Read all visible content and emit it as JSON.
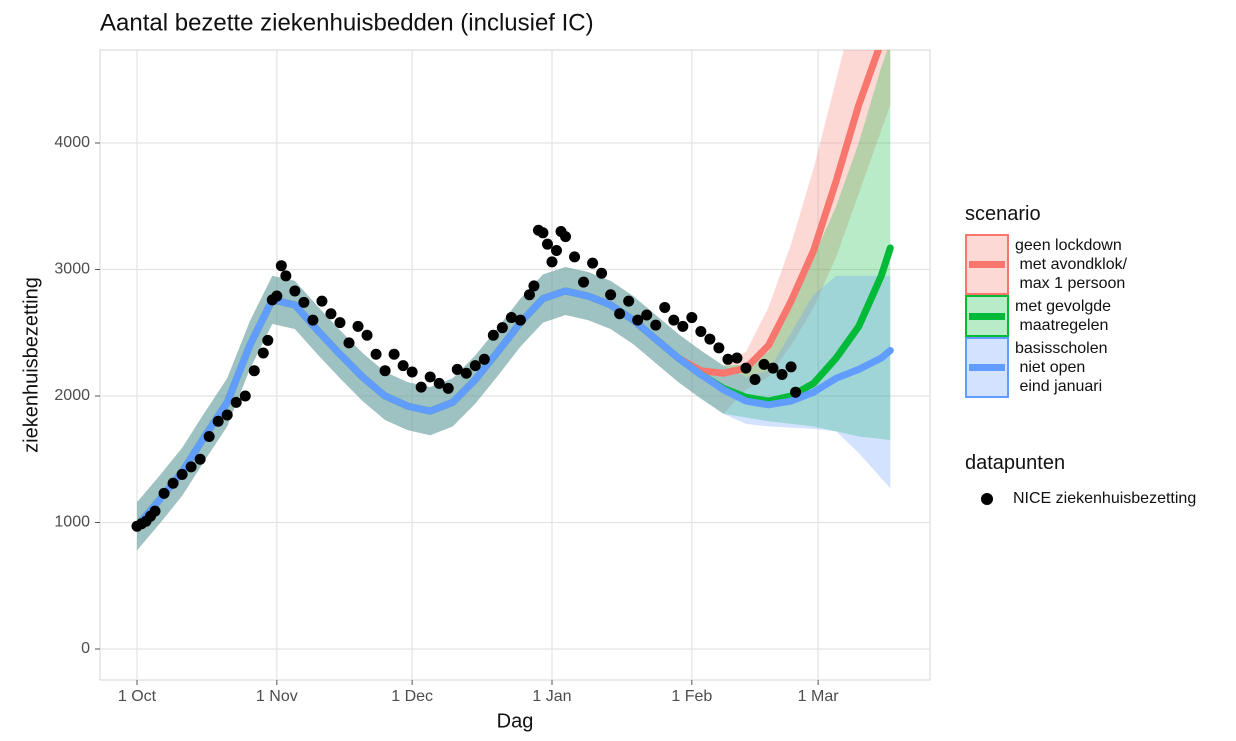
{
  "chart_data": {
    "type": "line",
    "title": "Aantal bezette ziekenhuisbedden (inclusief IC)",
    "x_label": "Dag",
    "y_label": "ziekenhuisbezetting",
    "legend_title": "scenario",
    "points_legend_title": "datapunten",
    "xlim": [
      -8.2,
      175.8
    ],
    "ylim": [
      -245,
      4735
    ],
    "xticks": [
      {
        "value": 0,
        "label": "1 Oct"
      },
      {
        "value": 31,
        "label": "1 Nov"
      },
      {
        "value": 61,
        "label": "1 Dec"
      },
      {
        "value": 92,
        "label": "1 Jan"
      },
      {
        "value": 123,
        "label": "1 Feb"
      },
      {
        "value": 151,
        "label": "1 Mar"
      }
    ],
    "yticks": [
      0,
      1000,
      2000,
      3000,
      4000
    ],
    "grid": true,
    "series": [
      {
        "name": "geen lockdown\n met avondklok/\n max 1 persoon",
        "color": "#f8766d",
        "x": [
          0,
          5,
          10,
          15,
          20,
          25,
          30,
          35,
          40,
          45,
          50,
          55,
          60,
          65,
          70,
          75,
          80,
          85,
          90,
          95,
          100,
          105,
          110,
          115,
          120,
          125,
          130,
          135,
          140,
          145,
          150,
          155,
          160,
          165,
          167
        ],
        "values": [
          970,
          1180,
          1400,
          1680,
          1950,
          2400,
          2760,
          2720,
          2520,
          2330,
          2150,
          2000,
          1920,
          1880,
          1950,
          2130,
          2350,
          2580,
          2770,
          2830,
          2790,
          2720,
          2600,
          2450,
          2300,
          2200,
          2180,
          2220,
          2400,
          2750,
          3150,
          3700,
          4300,
          4800,
          5000
        ],
        "lower": [
          780,
          990,
          1210,
          1490,
          1760,
          2210,
          2570,
          2530,
          2330,
          2140,
          1960,
          1810,
          1730,
          1690,
          1760,
          1940,
          2160,
          2390,
          2580,
          2640,
          2600,
          2530,
          2410,
          2260,
          2110,
          1980,
          1860,
          2050,
          2150,
          2400,
          2700,
          3100,
          3600,
          4100,
          4300
        ],
        "upper": [
          1160,
          1370,
          1590,
          1870,
          2140,
          2590,
          2950,
          2910,
          2710,
          2520,
          2340,
          2190,
          2110,
          2070,
          2140,
          2320,
          2540,
          2770,
          2960,
          3020,
          2980,
          2910,
          2790,
          2640,
          2490,
          2360,
          2240,
          2350,
          2700,
          3200,
          3800,
          4500,
          5200,
          5800,
          6000
        ]
      },
      {
        "name": "met gevolgde\n maatregelen",
        "color": "#00ba38",
        "x": [
          0,
          5,
          10,
          15,
          20,
          25,
          30,
          35,
          40,
          45,
          50,
          55,
          60,
          65,
          70,
          75,
          80,
          85,
          90,
          95,
          100,
          105,
          110,
          115,
          120,
          125,
          130,
          135,
          140,
          145,
          150,
          155,
          160,
          165,
          167
        ],
        "values": [
          970,
          1180,
          1400,
          1680,
          1950,
          2400,
          2760,
          2720,
          2520,
          2330,
          2150,
          2000,
          1920,
          1880,
          1950,
          2130,
          2350,
          2580,
          2770,
          2830,
          2790,
          2720,
          2600,
          2450,
          2300,
          2170,
          2060,
          1990,
          1960,
          2000,
          2100,
          2300,
          2550,
          2950,
          3170
        ],
        "lower": [
          780,
          990,
          1210,
          1490,
          1760,
          2210,
          2570,
          2530,
          2330,
          2140,
          1960,
          1810,
          1730,
          1690,
          1760,
          1940,
          2160,
          2390,
          2580,
          2640,
          2600,
          2530,
          2410,
          2260,
          2110,
          1980,
          1860,
          1830,
          1800,
          1780,
          1760,
          1720,
          1680,
          1660,
          1650
        ],
        "upper": [
          1160,
          1370,
          1590,
          1870,
          2140,
          2590,
          2950,
          2910,
          2710,
          2520,
          2340,
          2190,
          2110,
          2070,
          2140,
          2320,
          2540,
          2770,
          2960,
          3020,
          2980,
          2910,
          2790,
          2640,
          2490,
          2360,
          2240,
          2250,
          2350,
          2700,
          3100,
          3500,
          4000,
          4600,
          4800
        ]
      },
      {
        "name": "basisscholen\n niet open\n eind januari",
        "color": "#619cff",
        "x": [
          0,
          5,
          10,
          15,
          20,
          25,
          30,
          35,
          40,
          45,
          50,
          55,
          60,
          65,
          70,
          75,
          80,
          85,
          90,
          95,
          100,
          105,
          110,
          115,
          120,
          125,
          130,
          135,
          140,
          145,
          150,
          155,
          160,
          165,
          167
        ],
        "values": [
          970,
          1180,
          1400,
          1680,
          1950,
          2400,
          2760,
          2720,
          2520,
          2330,
          2150,
          2000,
          1920,
          1880,
          1950,
          2130,
          2350,
          2580,
          2770,
          2830,
          2790,
          2720,
          2600,
          2450,
          2300,
          2170,
          2050,
          1960,
          1930,
          1960,
          2030,
          2140,
          2210,
          2300,
          2360
        ],
        "lower": [
          780,
          990,
          1210,
          1490,
          1760,
          2210,
          2570,
          2530,
          2330,
          2140,
          1960,
          1810,
          1730,
          1690,
          1760,
          1940,
          2160,
          2390,
          2580,
          2640,
          2600,
          2530,
          2410,
          2260,
          2110,
          1980,
          1860,
          1780,
          1760,
          1750,
          1740,
          1720,
          1550,
          1350,
          1270
        ],
        "upper": [
          1160,
          1370,
          1590,
          1870,
          2140,
          2590,
          2950,
          2910,
          2710,
          2520,
          2340,
          2190,
          2110,
          2070,
          2140,
          2320,
          2540,
          2770,
          2960,
          3020,
          2980,
          2910,
          2790,
          2640,
          2490,
          2360,
          2240,
          2150,
          2200,
          2500,
          2800,
          2950,
          2950,
          2950,
          2950
        ]
      }
    ],
    "points": {
      "name": "NICE ziekenhuisbezetting",
      "color": "#000000",
      "x": [
        0,
        1,
        2,
        3,
        4,
        6,
        8,
        10,
        12,
        14,
        16,
        18,
        20,
        22,
        24,
        26,
        28,
        29,
        30,
        31,
        32,
        33,
        35,
        37,
        39,
        41,
        43,
        45,
        47,
        49,
        51,
        53,
        55,
        57,
        59,
        61,
        63,
        65,
        67,
        69,
        71,
        73,
        75,
        77,
        79,
        81,
        83,
        85,
        87,
        88,
        89,
        90,
        91,
        92,
        93,
        94,
        95,
        97,
        99,
        101,
        103,
        105,
        107,
        109,
        111,
        113,
        115,
        117,
        119,
        121,
        123,
        125,
        127,
        129,
        131,
        133,
        135,
        137,
        139,
        141,
        143,
        145,
        146
      ],
      "values": [
        970,
        990,
        1010,
        1050,
        1090,
        1230,
        1310,
        1380,
        1440,
        1500,
        1680,
        1800,
        1850,
        1950,
        2000,
        2200,
        2340,
        2440,
        2760,
        2790,
        3030,
        2950,
        2830,
        2740,
        2600,
        2750,
        2650,
        2580,
        2420,
        2550,
        2480,
        2330,
        2200,
        2330,
        2240,
        2190,
        2070,
        2150,
        2100,
        2060,
        2210,
        2180,
        2240,
        2290,
        2480,
        2540,
        2620,
        2600,
        2800,
        2870,
        3310,
        3290,
        3200,
        3060,
        3150,
        3300,
        3260,
        3100,
        2900,
        3050,
        2970,
        2800,
        2650,
        2750,
        2600,
        2640,
        2560,
        2700,
        2600,
        2550,
        2620,
        2510,
        2450,
        2380,
        2290,
        2300,
        2220,
        2130,
        2250,
        2220,
        2170,
        2230,
        2030
      ]
    }
  }
}
